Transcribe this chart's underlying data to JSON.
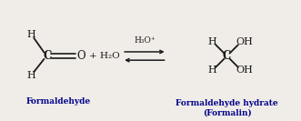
{
  "bg_color": "#f0ede8",
  "line_color": "#1a1a1a",
  "label_color": "#00008B",
  "text_color": "#1a1a1a",
  "figsize": [
    3.31,
    1.33
  ],
  "dpi": 100,
  "formaldehyde_label": "Formaldehyde",
  "product_label": "Formaldehyde hydrate\n(Formalin)",
  "catalyst": "H₃O⁺",
  "water": "+ H₂O"
}
